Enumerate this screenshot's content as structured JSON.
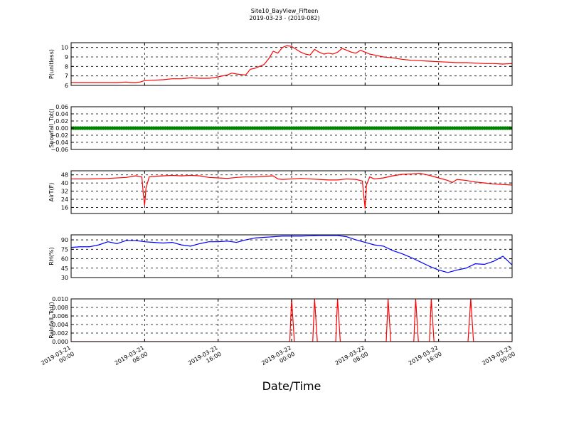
{
  "figure": {
    "title": "Site10_BayView_Fifteen",
    "subtitle": "2019-03-23 - (2019-082)",
    "xlabel": "Date/Time"
  },
  "chart_data": [
    {
      "type": "line",
      "ylabel": "P(unitless)",
      "ylim": [
        6,
        10.5
      ],
      "yticks": [
        "6",
        "7",
        "8",
        "9",
        "10"
      ],
      "grid": true,
      "series": [
        {
          "color": "#ff0000",
          "x": [
            0,
            1,
            2,
            3,
            4,
            5,
            6,
            6.5,
            7,
            7.5,
            8,
            9,
            10,
            11,
            12,
            12.5,
            13,
            14,
            15,
            15.5,
            16,
            17,
            17.5,
            18,
            18.5,
            19,
            19.5,
            20,
            20.5,
            21,
            21.5,
            22,
            22.5,
            23,
            23.5,
            24,
            24.5,
            25,
            25.5,
            26,
            26.5,
            27,
            27.5,
            28,
            28.5,
            29,
            29.5,
            30,
            30.5,
            31,
            31.5,
            32,
            32.5,
            33,
            33.5,
            34,
            34.5,
            35,
            36,
            37,
            38,
            39,
            40,
            41,
            42,
            43,
            44,
            45,
            46,
            47,
            48
          ],
          "y": [
            6.3,
            6.3,
            6.3,
            6.3,
            6.3,
            6.3,
            6.35,
            6.3,
            6.3,
            6.35,
            6.5,
            6.55,
            6.6,
            6.7,
            6.7,
            6.75,
            6.8,
            6.75,
            6.75,
            6.8,
            6.9,
            7.1,
            7.3,
            7.2,
            7.15,
            7.1,
            7.7,
            7.8,
            8.0,
            8.2,
            8.8,
            9.6,
            9.4,
            10.0,
            10.2,
            10.1,
            9.8,
            9.5,
            9.3,
            9.2,
            9.8,
            9.5,
            9.3,
            9.4,
            9.3,
            9.5,
            9.9,
            9.7,
            9.5,
            9.4,
            9.7,
            9.5,
            9.3,
            9.2,
            9.1,
            9.0,
            8.95,
            8.9,
            8.75,
            8.65,
            8.6,
            8.55,
            8.5,
            8.45,
            8.4,
            8.4,
            8.35,
            8.3,
            8.3,
            8.25,
            8.3
          ]
        }
      ]
    },
    {
      "type": "scatter",
      "ylabel": "Snowfall_Tot()",
      "ylim": [
        -0.06,
        0.06
      ],
      "yticks": [
        "−0.06",
        "−0.04",
        "−0.02",
        "0.00",
        "0.02",
        "0.04",
        "0.06"
      ],
      "grid": true,
      "series": [
        {
          "color": "#008000",
          "x_range": [
            0,
            48
          ],
          "x_step": 0.25,
          "value": 0.0
        }
      ]
    },
    {
      "type": "line",
      "ylabel": "AirT(F)",
      "ylim": [
        10,
        52
      ],
      "yticks": [
        "16",
        "24",
        "32",
        "40",
        "48"
      ],
      "grid": true,
      "series": [
        {
          "color": "#ff0000",
          "x": [
            0,
            2,
            4,
            6,
            7,
            7.7,
            7.85,
            8,
            8.15,
            8.5,
            9,
            10,
            11,
            12,
            13,
            14,
            15,
            16,
            17,
            18,
            19,
            20,
            21,
            22,
            22.5,
            23,
            24,
            25,
            26,
            27,
            28,
            29,
            30,
            31,
            31.7,
            31.85,
            32,
            32.15,
            32.5,
            33,
            34,
            35,
            36,
            37,
            38,
            39,
            40,
            41,
            41.5,
            42,
            43,
            44,
            45,
            46,
            47,
            48
          ],
          "y": [
            44,
            44,
            44.5,
            45.5,
            47,
            46,
            30,
            18,
            35,
            46,
            46.5,
            47,
            47.5,
            47,
            47.5,
            47,
            45.5,
            45,
            44.5,
            45.5,
            46,
            46,
            46.5,
            47,
            44,
            43.5,
            44,
            44.5,
            44,
            43.5,
            43,
            43,
            44,
            43.5,
            42,
            28,
            15,
            38,
            46,
            44,
            45,
            47,
            48.5,
            49,
            49.5,
            47.5,
            45,
            42.5,
            40.5,
            43.5,
            42.5,
            41,
            40,
            39,
            38.5,
            38
          ]
        }
      ]
    },
    {
      "type": "line",
      "ylabel": "RH(%)",
      "ylim": [
        30,
        98
      ],
      "yticks": [
        "30",
        "45",
        "60",
        "75",
        "90"
      ],
      "grid": true,
      "series": [
        {
          "color": "#0000ff",
          "x": [
            0,
            1,
            2,
            3,
            4,
            5,
            6,
            7,
            8,
            9,
            10,
            11,
            12,
            13,
            14,
            15,
            16,
            17,
            18,
            19,
            20,
            21,
            22,
            23,
            24,
            25,
            26,
            27,
            28,
            29,
            30,
            31,
            32,
            33,
            34,
            35,
            36,
            37,
            38,
            39,
            40,
            41,
            42,
            43,
            44,
            45,
            46,
            47,
            48
          ],
          "y": [
            78,
            79,
            79,
            82,
            87,
            84,
            89,
            89,
            87,
            86,
            85,
            86,
            82,
            80,
            84,
            87,
            87,
            88,
            86,
            90,
            93,
            94,
            95,
            96,
            96,
            96,
            96.5,
            97,
            97,
            97,
            95,
            90,
            86,
            82,
            80,
            73,
            68,
            62,
            55,
            48,
            42,
            38,
            42,
            45,
            52,
            51,
            56,
            64,
            50
          ]
        }
      ]
    },
    {
      "type": "line",
      "ylabel": "Rainfall_Tot()",
      "ylim": [
        0,
        0.01
      ],
      "yticks": [
        "0.000",
        "0.002",
        "0.004",
        "0.006",
        "0.008",
        "0.010"
      ],
      "grid": true,
      "series": [
        {
          "color": "#ff0000",
          "x": [
            0,
            23.8,
            24,
            24.3,
            26.3,
            26.5,
            26.8,
            28.8,
            29,
            29.3,
            34.3,
            34.5,
            34.8,
            37.3,
            37.5,
            37.8,
            39,
            39.2,
            39.5,
            43.2,
            43.5,
            43.8,
            48
          ],
          "y": [
            0,
            0,
            0.01,
            0,
            0,
            0.01,
            0,
            0,
            0.01,
            0,
            0,
            0.01,
            0,
            0,
            0.01,
            0,
            0,
            0.01,
            0,
            0,
            0.01,
            0,
            0
          ]
        }
      ]
    }
  ],
  "x_axis": {
    "range": [
      0,
      48
    ],
    "ticks": [
      {
        "line1": "2019-03-21",
        "line2": "00:00"
      },
      {
        "line1": "2019-03-21",
        "line2": "08:00"
      },
      {
        "line1": "2019-03-21",
        "line2": "16:00"
      },
      {
        "line1": "2019-03-22",
        "line2": "00:00"
      },
      {
        "line1": "2019-03-22",
        "line2": "08:00"
      },
      {
        "line1": "2019-03-22",
        "line2": "16:00"
      },
      {
        "line1": "2019-03-23",
        "line2": "00:00"
      }
    ]
  }
}
